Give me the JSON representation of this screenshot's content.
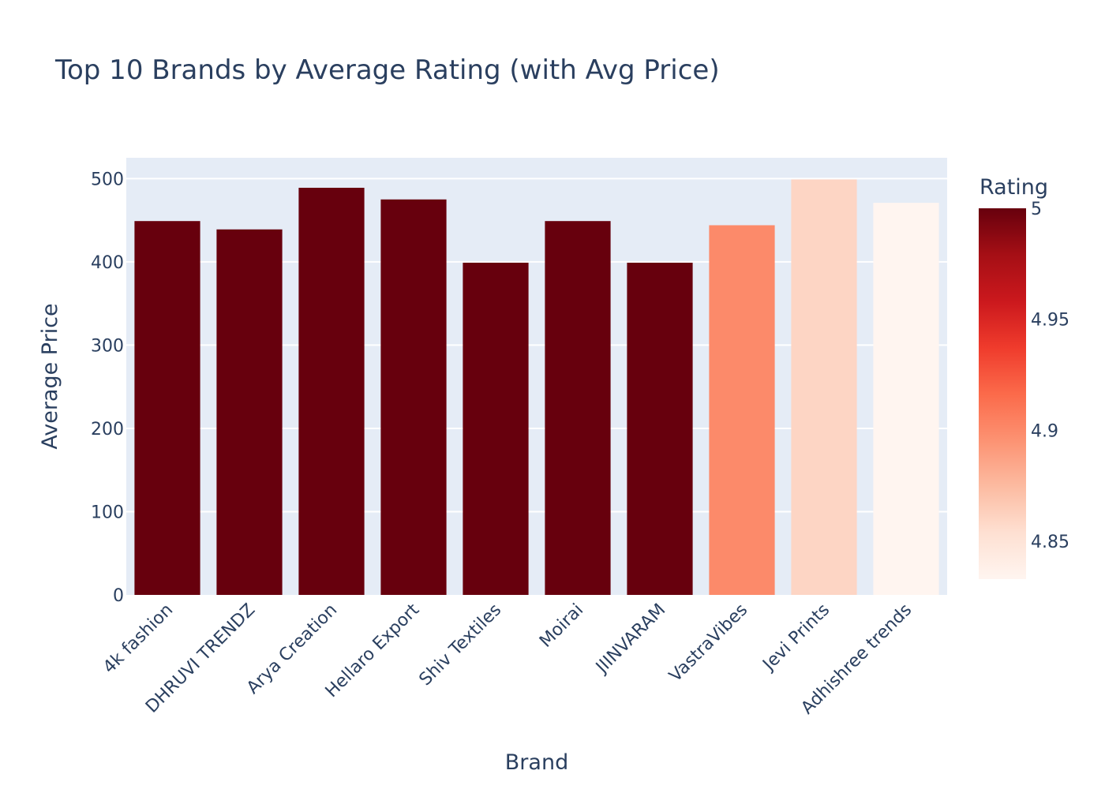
{
  "chart_data": {
    "type": "bar",
    "title": "Top 10 Brands by Average Rating (with Avg Price)",
    "xlabel": "Brand",
    "ylabel": "Average Price",
    "categories": [
      "4k fashion",
      "DHRUVI TRENDZ",
      "Arya Creation",
      "Hellaro Export",
      "Shiv Textiles",
      "Moirai",
      "JIINVARAM",
      "VastraVibes",
      "Jevi Prints",
      "Adhishree trends"
    ],
    "values": [
      449,
      439,
      489,
      475,
      399,
      449,
      399,
      444,
      499,
      471
    ],
    "ratings": [
      5,
      5,
      5,
      5,
      5,
      5,
      5,
      4.9,
      4.86,
      4.83
    ],
    "ylim": [
      0,
      525
    ],
    "yticks": [
      "0",
      "100",
      "200",
      "300",
      "400",
      "500"
    ],
    "grid": true,
    "colorbar": {
      "title": "Rating",
      "range": [
        4.833,
        5.0
      ],
      "ticks": [
        "4.85",
        "4.9",
        "4.95",
        "5"
      ],
      "colorscale": [
        "#fff5f0",
        "#fee0d2",
        "#fcbba1",
        "#fc9272",
        "#fb6a4a",
        "#ef3b2c",
        "#cb181d",
        "#a50f15",
        "#67000d"
      ]
    },
    "plot_background": "#e5ecf6"
  }
}
